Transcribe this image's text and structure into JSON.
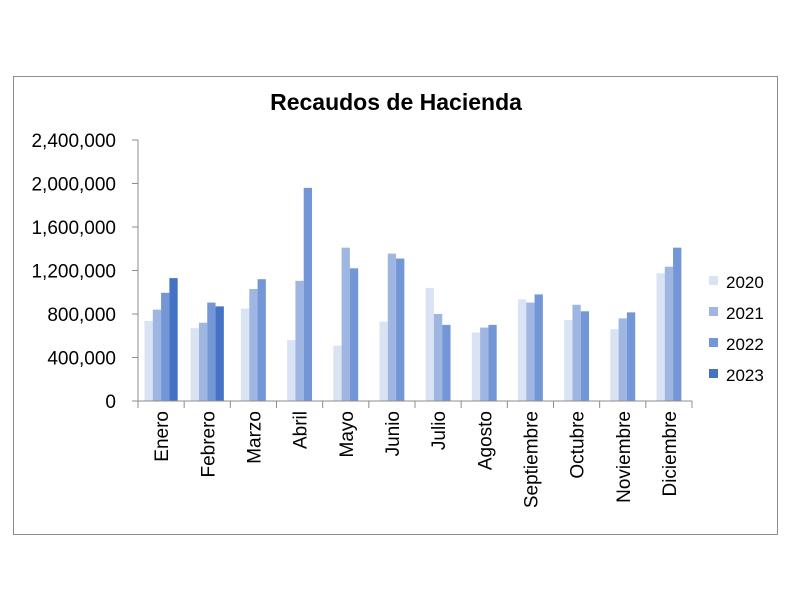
{
  "chart_data": {
    "type": "bar",
    "title": "Recaudos de Hacienda",
    "xlabel": "",
    "ylabel": "",
    "ylim": [
      0,
      2400000
    ],
    "yticks": [
      "0",
      "400,000",
      "800,000",
      "1,200,000",
      "1,600,000",
      "2,000,000",
      "2,400,000"
    ],
    "ytick_values": [
      0,
      400000,
      800000,
      1200000,
      1600000,
      2000000,
      2400000
    ],
    "grid": false,
    "legend_position": "right",
    "categories": [
      "Enero",
      "Febrero",
      "Marzo",
      "Abril",
      "Mayo",
      "Junio",
      "Julio",
      "Agosto",
      "Septiembre",
      "Octubre",
      "Noviembre",
      "Diciembre"
    ],
    "series": [
      {
        "name": "2020",
        "color": "#dae3f3",
        "values": [
          735000,
          670000,
          850000,
          560000,
          510000,
          730000,
          1040000,
          630000,
          935000,
          745000,
          660000,
          1175000
        ]
      },
      {
        "name": "2021",
        "color": "#9fb6e3",
        "values": [
          840000,
          720000,
          1030000,
          1105000,
          1410000,
          1355000,
          800000,
          675000,
          905000,
          885000,
          760000,
          1235000
        ]
      },
      {
        "name": "2022",
        "color": "#7396d6",
        "values": [
          995000,
          905000,
          1120000,
          1960000,
          1220000,
          1310000,
          700000,
          700000,
          980000,
          825000,
          815000,
          1410000
        ]
      },
      {
        "name": "2023",
        "color": "#4472c4",
        "values": [
          1130000,
          870000,
          null,
          null,
          null,
          null,
          null,
          null,
          null,
          null,
          null,
          null
        ]
      }
    ]
  }
}
